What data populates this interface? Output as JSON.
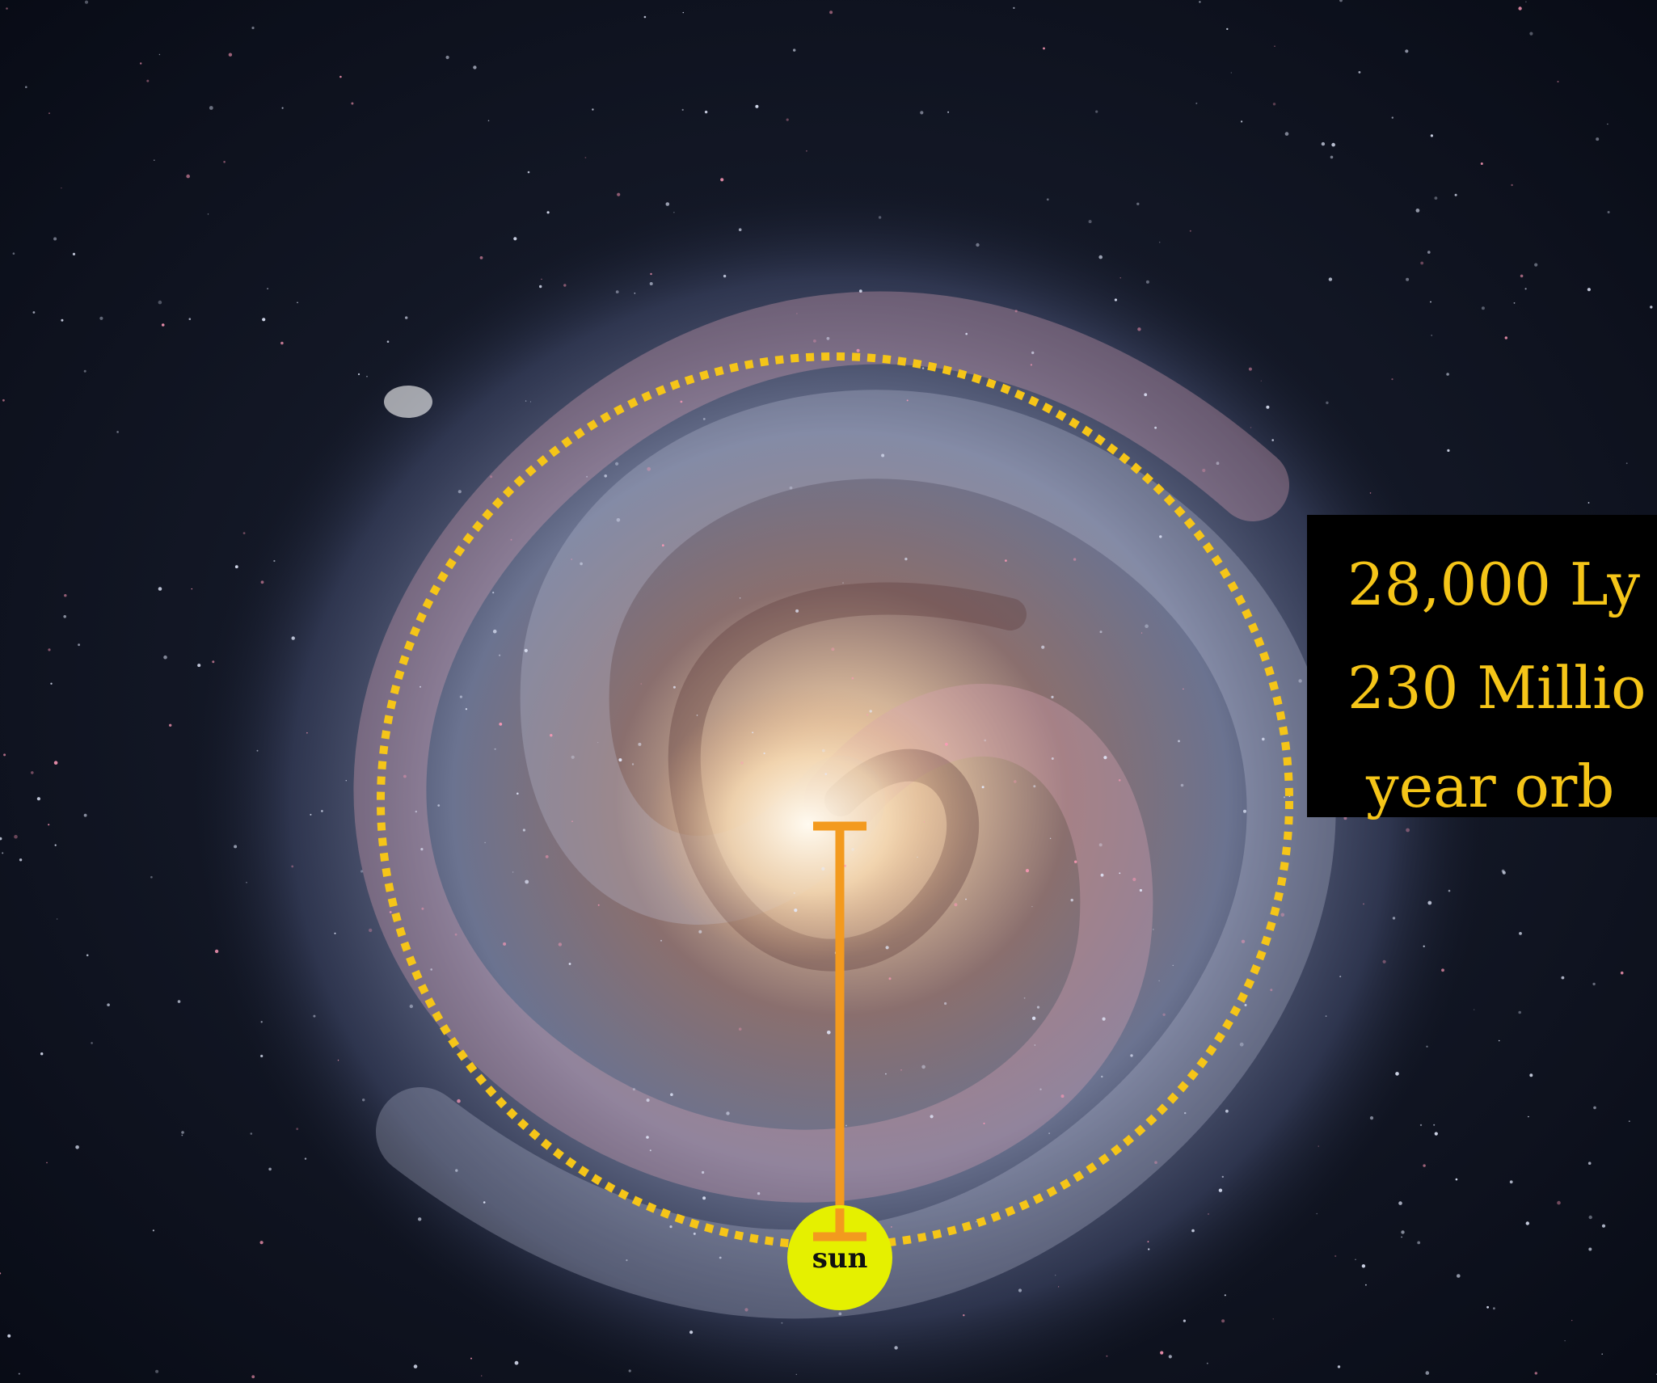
{
  "annotation": {
    "lines": [
      "28,000 Ly",
      "230 Millio",
      "year orb"
    ]
  },
  "marker": {
    "label": "sun"
  }
}
